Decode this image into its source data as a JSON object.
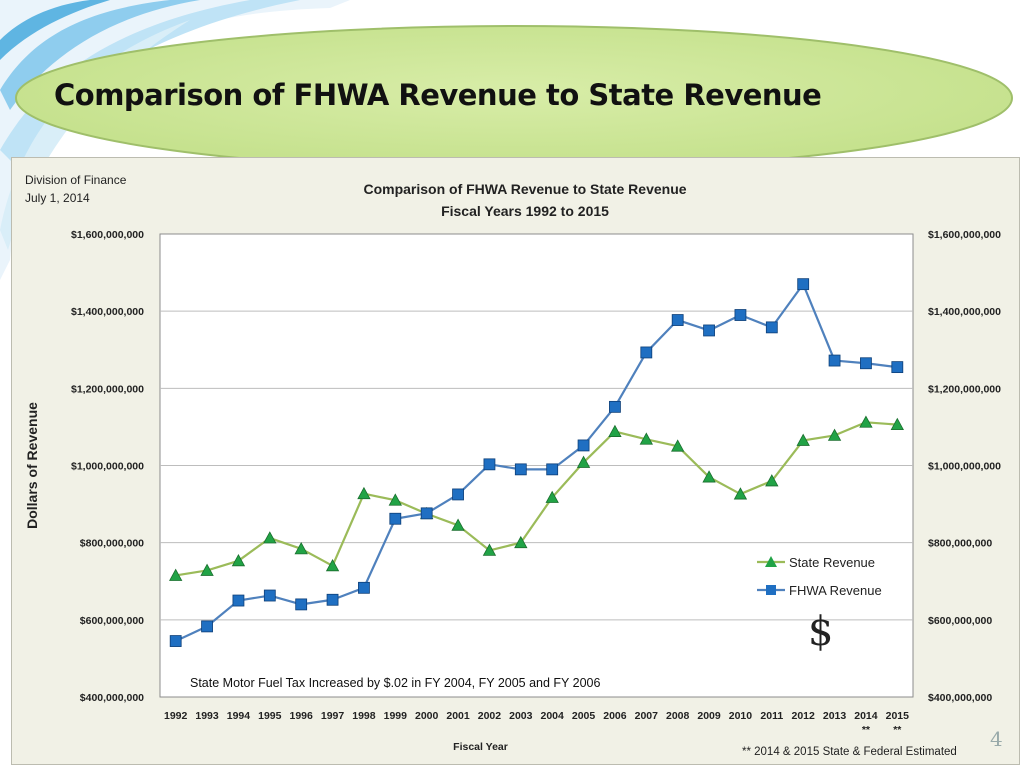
{
  "slide": {
    "title": "Comparison of FHWA Revenue to State Revenue",
    "page_number": "4"
  },
  "header_note": {
    "line1": "Division of Finance",
    "line2": "July 1, 2014"
  },
  "chart_data": {
    "type": "line",
    "title": "Comparison of FHWA Revenue to State Revenue",
    "subtitle": "Fiscal Years 1992 to 2015",
    "xlabel": "Fiscal Year",
    "ylabel": "Dollars of Revenue",
    "ylim": [
      400000000,
      1600000000
    ],
    "yticks": [
      "$400,000,000",
      "$600,000,000",
      "$800,000,000",
      "$1,000,000,000",
      "$1,200,000,000",
      "$1,400,000,000",
      "$1,600,000,000"
    ],
    "categories": [
      "1992",
      "1993",
      "1994",
      "1995",
      "1996",
      "1997",
      "1998",
      "1999",
      "2000",
      "2001",
      "2002",
      "2003",
      "2004",
      "2005",
      "2006",
      "2007",
      "2008",
      "2009",
      "2010",
      "2011",
      "2012",
      "2013",
      "2014",
      "2015"
    ],
    "estimated_markers": {
      "2014": "**",
      "2015": "**"
    },
    "series": [
      {
        "name": "State Revenue",
        "color": "#9bbb59",
        "marker": "triangle",
        "marker_color": "#21a346",
        "values": [
          715000000,
          728000000,
          753000000,
          812000000,
          784000000,
          740000000,
          927000000,
          910000000,
          875000000,
          845000000,
          780000000,
          800000000,
          917000000,
          1008000000,
          1088000000,
          1068000000,
          1050000000,
          970000000,
          926000000,
          960000000,
          1065000000,
          1078000000,
          1112000000,
          1106000000
        ]
      },
      {
        "name": "FHWA Revenue",
        "color": "#4f81bd",
        "marker": "square",
        "marker_color": "#1f6fc2",
        "values": [
          545000000,
          583000000,
          650000000,
          663000000,
          640000000,
          652000000,
          683000000,
          862000000,
          876000000,
          925000000,
          1003000000,
          990000000,
          990000000,
          1052000000,
          1152000000,
          1293000000,
          1377000000,
          1350000000,
          1390000000,
          1358000000,
          1470000000,
          1272000000,
          1265000000,
          1255000000
        ]
      }
    ],
    "grid": "horizontal",
    "legend_position": "lower-right",
    "annotation": "State Motor Fuel Tax Increased by $.02 in FY 2004, FY 2005 and FY 2006",
    "footnote": "** 2014 & 2015 State & Federal  Estimated",
    "dollar_symbol": "$"
  }
}
